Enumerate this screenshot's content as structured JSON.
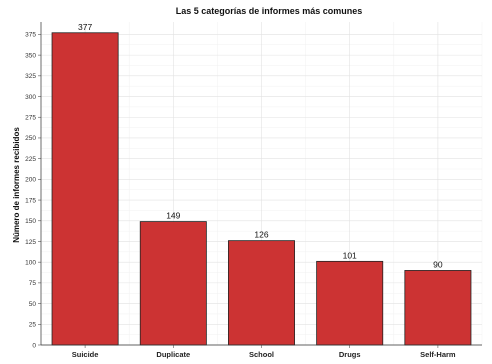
{
  "chart_data": {
    "type": "bar",
    "title": "Las 5 categorías de informes más comunes",
    "xlabel": "",
    "ylabel": "Número de informes recibidos",
    "categories": [
      "Suicide",
      "Duplicate",
      "School",
      "Drugs",
      "Self-Harm"
    ],
    "values": [
      377,
      149,
      126,
      101,
      90
    ],
    "data_labels": [
      "377",
      "149",
      "126",
      "101",
      "90"
    ],
    "ylim": [
      0,
      390
    ],
    "yticks": [
      0,
      25,
      50,
      75,
      100,
      125,
      150,
      175,
      200,
      225,
      250,
      275,
      300,
      325,
      350,
      375
    ],
    "grid": true,
    "bar_color": "#cc3333",
    "bar_edge_color": "#222222"
  }
}
